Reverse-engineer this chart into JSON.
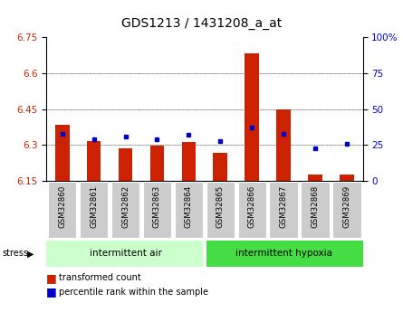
{
  "title": "GDS1213 / 1431208_a_at",
  "samples": [
    "GSM32860",
    "GSM32861",
    "GSM32862",
    "GSM32863",
    "GSM32864",
    "GSM32865",
    "GSM32866",
    "GSM32867",
    "GSM32868",
    "GSM32869"
  ],
  "red_values": [
    6.385,
    6.315,
    6.285,
    6.298,
    6.312,
    6.268,
    6.685,
    6.448,
    6.175,
    6.178
  ],
  "blue_values_pct": [
    33,
    29,
    31,
    29,
    32,
    28,
    37,
    33,
    23,
    26
  ],
  "y_min": 6.15,
  "y_max": 6.75,
  "y_ticks": [
    6.15,
    6.3,
    6.45,
    6.6,
    6.75
  ],
  "y_right_ticks": [
    0,
    25,
    50,
    75,
    100
  ],
  "y_right_tick_labels": [
    "0",
    "25",
    "50",
    "75",
    "100%"
  ],
  "group1_label": "intermittent air",
  "group2_label": "intermittent hypoxia",
  "stress_label": "stress",
  "legend1": "transformed count",
  "legend2": "percentile rank within the sample",
  "group1_count": 5,
  "group2_count": 5,
  "bar_color": "#cc2200",
  "dot_color": "#0000cc",
  "group1_bg": "#ccffcc",
  "group2_bg": "#44dd44",
  "tick_bg": "#cccccc",
  "bar_width": 0.45,
  "grid_lines": [
    6.3,
    6.45,
    6.6
  ]
}
